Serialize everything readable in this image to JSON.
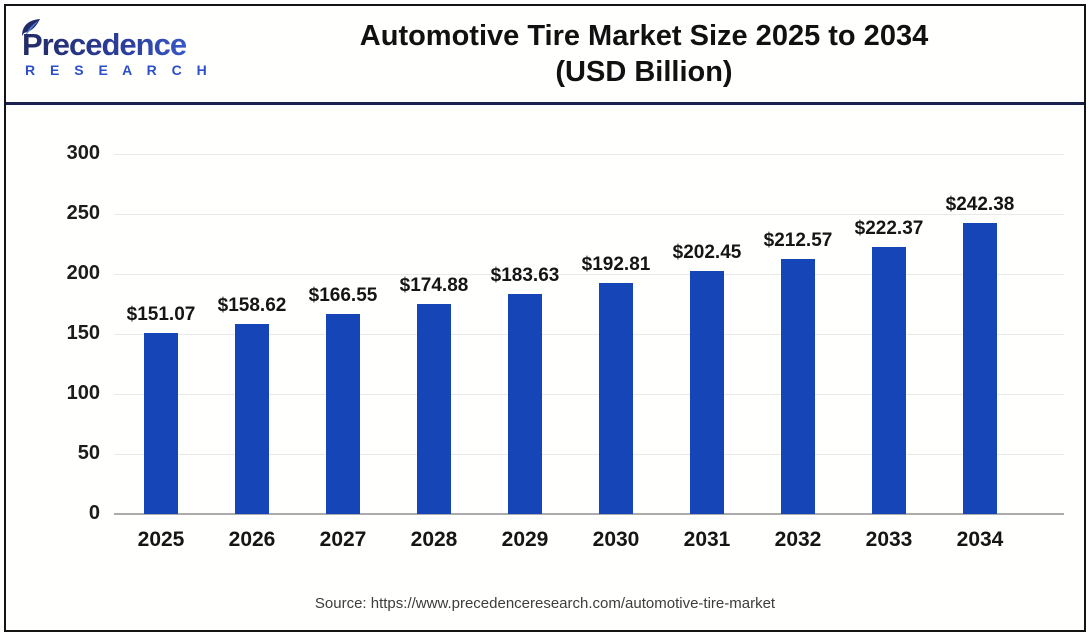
{
  "header": {
    "logo_text": "Precedence",
    "logo_subtext": "R E S E A R C H",
    "title_line1": "Automotive Tire Market Size 2025 to 2034",
    "title_line2": "(USD Billion)"
  },
  "chart_data": {
    "type": "bar",
    "title": "Automotive Tire Market Size 2025 to 2034 (USD Billion)",
    "categories": [
      "2025",
      "2026",
      "2027",
      "2028",
      "2029",
      "2030",
      "2031",
      "2032",
      "2033",
      "2034"
    ],
    "values": [
      151.07,
      158.62,
      166.55,
      174.88,
      183.63,
      192.81,
      202.45,
      212.57,
      222.37,
      242.38
    ],
    "bar_labels": [
      "$151.07",
      "$158.62",
      "$166.55",
      "$174.88",
      "$183.63",
      "$192.81",
      "$202.45",
      "$212.57",
      "$222.37",
      "$242.38"
    ],
    "xlabel": "",
    "ylabel": "",
    "ylim": [
      0,
      300
    ],
    "yticks": [
      0,
      50,
      100,
      150,
      200,
      250,
      300
    ],
    "grid": true,
    "legend": false,
    "bar_color": "#1545b6",
    "gridline_color": "#e9e9e9",
    "baseline_color": "#ababab"
  },
  "footer": {
    "source": "Source: https://www.precedenceresearch.com/automotive-tire-market"
  }
}
